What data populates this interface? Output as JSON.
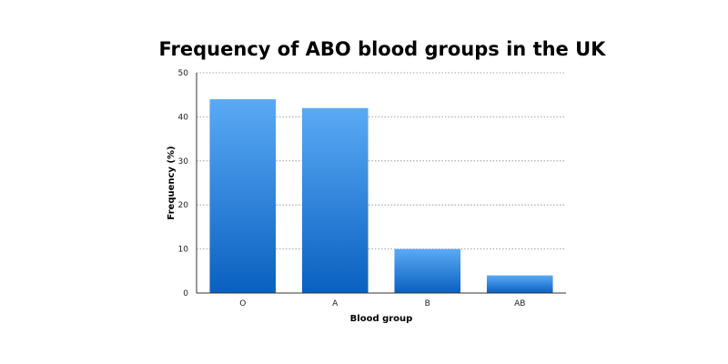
{
  "chart_data": {
    "type": "bar",
    "title": "Frequency of ABO blood groups in the UK",
    "xlabel": "Blood group",
    "ylabel": "Frequency (%)",
    "categories": [
      "O",
      "A",
      "B",
      "AB"
    ],
    "values": [
      44,
      42,
      10,
      4
    ],
    "ylim": [
      0,
      50
    ],
    "yticks": [
      0,
      10,
      20,
      30,
      40,
      50
    ],
    "grid": true,
    "bar_color_top": "#5aaaf5",
    "bar_color_bottom": "#0a60c0"
  }
}
